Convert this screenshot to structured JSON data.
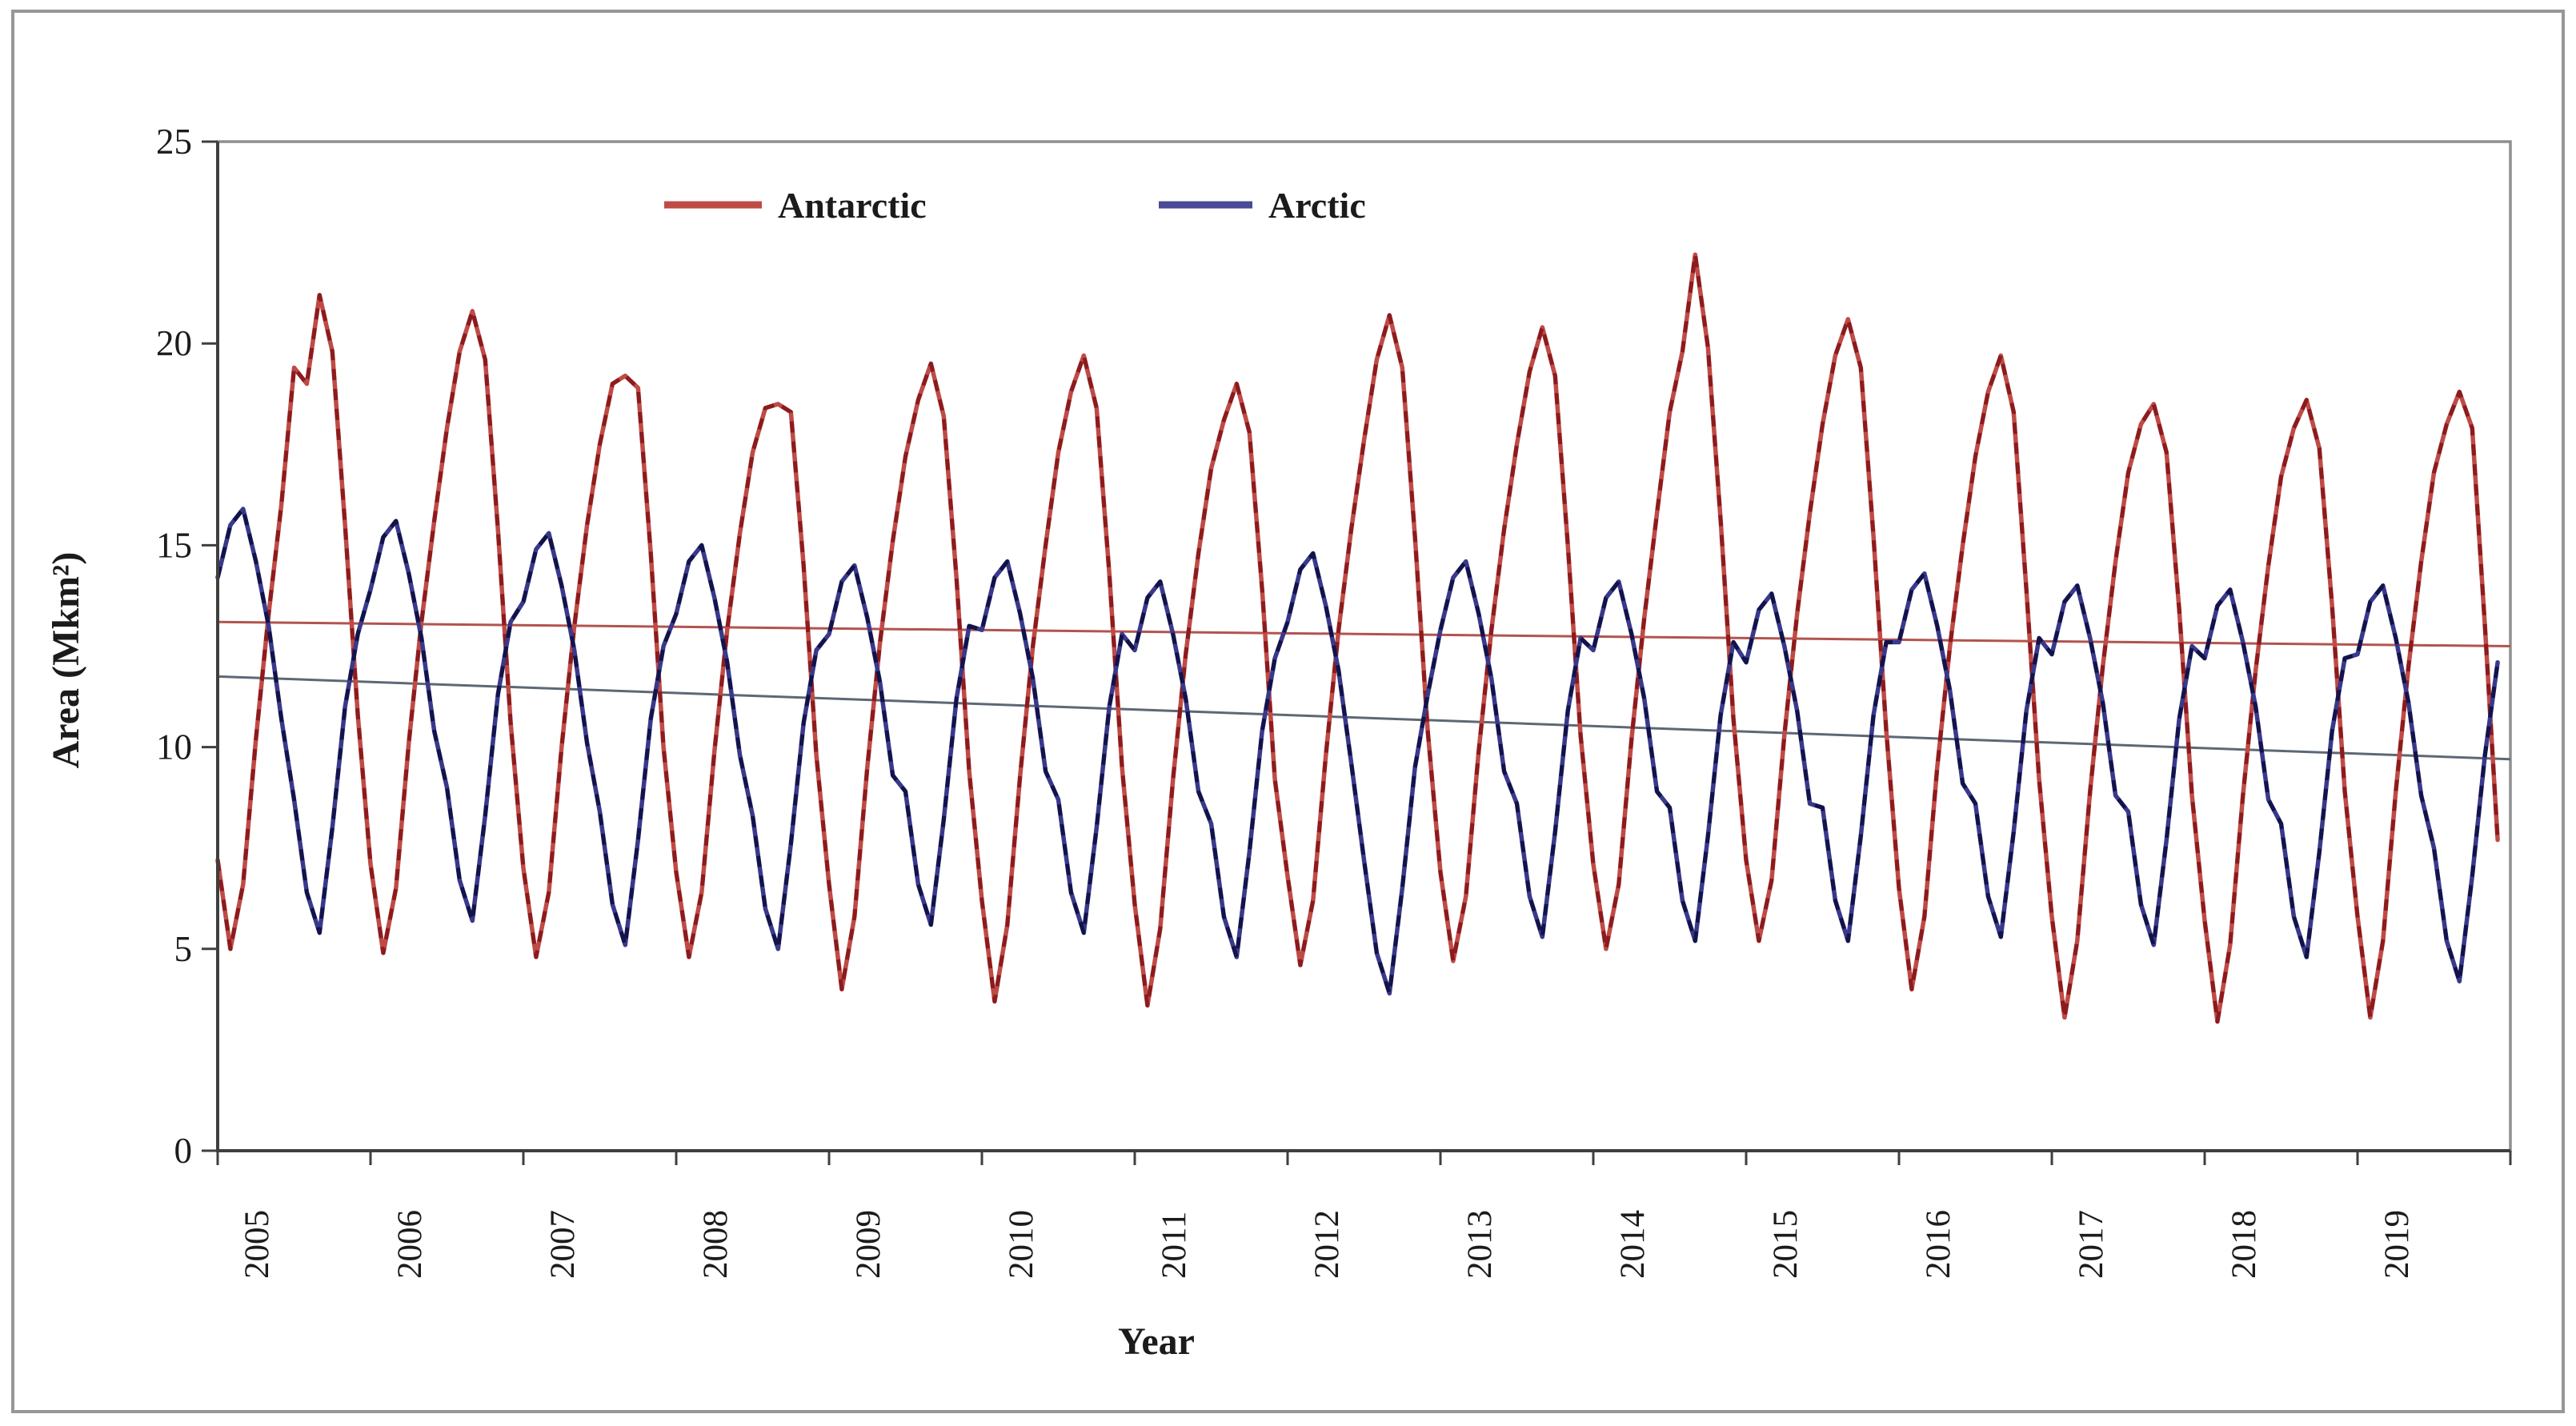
{
  "chart_data": {
    "type": "line",
    "title": "",
    "xlabel": "Year",
    "ylabel": "Area (Mkm²)",
    "ylim": [
      0,
      25
    ],
    "yticks": [
      0,
      5,
      10,
      15,
      20,
      25
    ],
    "grid": false,
    "legend_position": "top-center",
    "years": [
      2005,
      2006,
      2007,
      2008,
      2009,
      2010,
      2011,
      2012,
      2013,
      2014,
      2015,
      2016,
      2017,
      2018,
      2019
    ],
    "series": [
      {
        "name": "Antarctic",
        "color": "#bf4b46",
        "dash_color": "#8b1b1e",
        "legend_color": "#bf4b46",
        "monthly_by_year": [
          [
            7.2,
            5.0,
            6.6,
            10.2,
            13.3,
            16.0,
            19.4,
            19.0,
            21.2,
            19.8,
            15.5,
            10.8
          ],
          [
            7.1,
            4.9,
            6.5,
            10.1,
            13.1,
            15.6,
            17.9,
            19.8,
            20.8,
            19.6,
            15.4,
            10.6
          ],
          [
            7.0,
            4.8,
            6.4,
            10.0,
            13.0,
            15.5,
            17.5,
            19.0,
            19.2,
            18.9,
            14.8,
            10.0
          ],
          [
            6.9,
            4.8,
            6.4,
            9.9,
            12.9,
            15.3,
            17.3,
            18.4,
            18.5,
            18.3,
            14.5,
            9.8
          ],
          [
            6.6,
            4.0,
            5.8,
            9.5,
            12.6,
            15.1,
            17.2,
            18.6,
            19.5,
            18.2,
            14.2,
            9.4
          ],
          [
            6.2,
            3.7,
            5.6,
            9.3,
            12.5,
            15.0,
            17.3,
            18.8,
            19.7,
            18.4,
            14.3,
            9.5
          ],
          [
            6.1,
            3.6,
            5.5,
            9.2,
            12.3,
            14.8,
            16.9,
            18.1,
            19.0,
            17.8,
            13.9,
            9.2
          ],
          [
            6.8,
            4.6,
            6.2,
            9.8,
            12.9,
            15.4,
            17.6,
            19.6,
            20.7,
            19.4,
            15.2,
            10.4
          ],
          [
            6.9,
            4.7,
            6.3,
            9.9,
            12.9,
            15.4,
            17.5,
            19.3,
            20.4,
            19.2,
            15.0,
            10.3
          ],
          [
            7.1,
            5.0,
            6.6,
            10.2,
            13.2,
            15.8,
            18.3,
            19.8,
            22.2,
            19.9,
            15.6,
            10.7
          ],
          [
            7.2,
            5.2,
            6.7,
            10.3,
            13.3,
            15.8,
            18.0,
            19.7,
            20.6,
            19.4,
            15.2,
            10.4
          ],
          [
            6.5,
            4.0,
            5.8,
            9.5,
            12.5,
            15.0,
            17.2,
            18.8,
            19.7,
            18.3,
            13.9,
            9.2
          ],
          [
            5.8,
            3.3,
            5.2,
            8.9,
            12.0,
            14.6,
            16.8,
            18.0,
            18.5,
            17.3,
            13.4,
            8.8
          ],
          [
            5.7,
            3.2,
            5.1,
            8.8,
            11.9,
            14.5,
            16.7,
            17.9,
            18.6,
            17.4,
            13.5,
            8.9
          ],
          [
            5.8,
            3.3,
            5.2,
            8.9,
            12.0,
            14.6,
            16.8,
            18.0,
            18.8,
            17.9,
            13.0,
            7.7
          ]
        ],
        "trend": {
          "start_value": 13.1,
          "end_value": 12.5,
          "color": "#b2544f"
        }
      },
      {
        "name": "Arctic",
        "color": "#39398c",
        "dash_color": "#13134a",
        "legend_color": "#4a4a96",
        "monthly_by_year": [
          [
            14.2,
            15.5,
            15.9,
            14.6,
            13.0,
            10.7,
            8.7,
            6.4,
            5.4,
            8.0,
            11.0,
            12.8
          ],
          [
            13.9,
            15.2,
            15.6,
            14.3,
            12.7,
            10.4,
            9.0,
            6.7,
            5.7,
            8.3,
            11.3,
            13.1
          ],
          [
            13.6,
            14.9,
            15.3,
            14.0,
            12.4,
            10.1,
            8.4,
            6.1,
            5.1,
            7.7,
            10.7,
            12.5
          ],
          [
            13.3,
            14.6,
            15.0,
            13.7,
            12.1,
            9.8,
            8.3,
            6.0,
            5.0,
            7.6,
            10.6,
            12.4
          ],
          [
            12.8,
            14.1,
            14.5,
            13.2,
            11.6,
            9.3,
            8.9,
            6.6,
            5.6,
            8.2,
            11.2,
            13.0
          ],
          [
            12.9,
            14.2,
            14.6,
            13.3,
            11.7,
            9.4,
            8.7,
            6.4,
            5.4,
            8.0,
            11.0,
            12.8
          ],
          [
            12.4,
            13.7,
            14.1,
            12.8,
            11.2,
            8.9,
            8.1,
            5.8,
            4.8,
            7.4,
            10.4,
            12.2
          ],
          [
            13.1,
            14.4,
            14.8,
            13.5,
            11.9,
            9.6,
            7.2,
            4.9,
            3.9,
            6.5,
            9.5,
            11.3
          ],
          [
            12.9,
            14.2,
            14.6,
            13.3,
            11.7,
            9.4,
            8.6,
            6.3,
            5.3,
            7.9,
            10.9,
            12.7
          ],
          [
            12.4,
            13.7,
            14.1,
            12.8,
            11.2,
            8.9,
            8.5,
            6.2,
            5.2,
            7.8,
            10.8,
            12.6
          ],
          [
            12.1,
            13.4,
            13.8,
            12.5,
            10.9,
            8.6,
            8.5,
            6.2,
            5.2,
            7.8,
            10.8,
            12.6
          ],
          [
            12.6,
            13.9,
            14.3,
            13.0,
            11.4,
            9.1,
            8.6,
            6.3,
            5.3,
            7.9,
            10.9,
            12.7
          ],
          [
            12.3,
            13.6,
            14.0,
            12.7,
            11.1,
            8.8,
            8.4,
            6.1,
            5.1,
            7.7,
            10.7,
            12.5
          ],
          [
            12.2,
            13.5,
            13.9,
            12.6,
            11.0,
            8.7,
            8.1,
            5.8,
            4.8,
            7.4,
            10.4,
            12.2
          ],
          [
            12.3,
            13.6,
            14.0,
            12.7,
            11.1,
            8.8,
            7.5,
            5.2,
            4.2,
            6.8,
            9.8,
            12.1
          ]
        ],
        "trend": {
          "start_value": 11.75,
          "end_value": 9.7,
          "color": "#5d6874"
        }
      }
    ]
  },
  "legend": {
    "antarctic_label": "Antarctic",
    "arctic_label": "Arctic"
  },
  "axes": {
    "y_title": "Area (Mkm²)",
    "x_title": "Year"
  },
  "frame": {
    "border_color": "#979797",
    "plot_border_color": "#8f8f8f",
    "axis_color": "#3f3f3f"
  }
}
